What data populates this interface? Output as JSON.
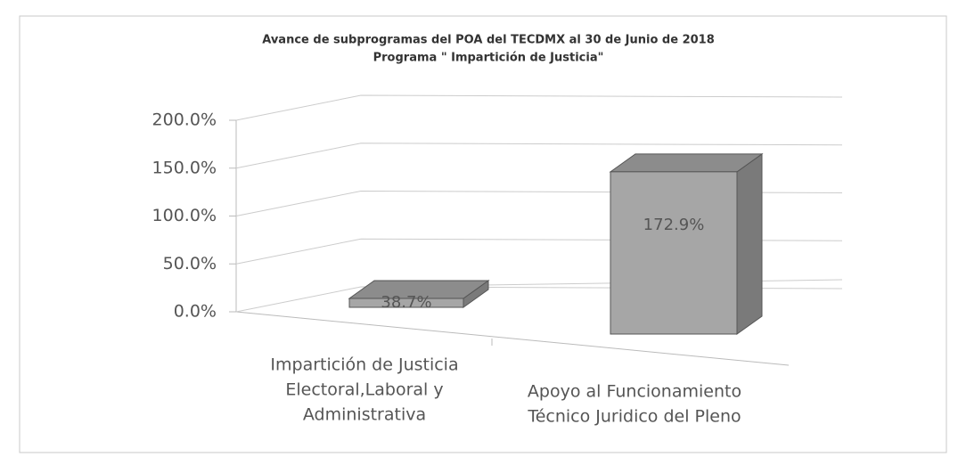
{
  "chart_data": {
    "type": "bar3d",
    "title": "Avance de subprogramas del POA del TECDMX al 30 de Junio de 2018",
    "subtitle": "Programa \" Impartición de Justicia\"",
    "categories": [
      [
        "Impartición de Justicia",
        "Electoral,Laboral y",
        "Administrativa"
      ],
      [
        "Apoyo al Funcionamiento",
        "Técnico Juridico del Pleno"
      ]
    ],
    "values": [
      38.7,
      172.9
    ],
    "value_labels": [
      "38.7%",
      "172.9%"
    ],
    "color": "#a6a6a6",
    "ylim": [
      0,
      200
    ],
    "yticks": [
      {
        "value": 0,
        "label": "0.0%"
      },
      {
        "value": 50,
        "label": "50.0%"
      },
      {
        "value": 100,
        "label": "100.0%"
      },
      {
        "value": 150,
        "label": "150.0%"
      },
      {
        "value": 200,
        "label": "200.0%"
      }
    ],
    "grid": true
  }
}
